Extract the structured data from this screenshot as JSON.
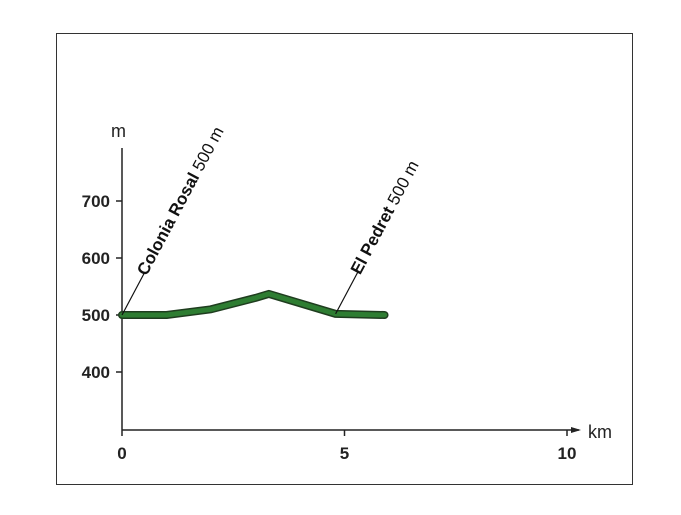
{
  "chart_data": {
    "type": "line",
    "title": "",
    "xlabel": "km",
    "ylabel": "m",
    "xlim": [
      0,
      10
    ],
    "ylim": [
      330,
      790
    ],
    "x_ticks": [
      "0",
      "5",
      "10"
    ],
    "y_ticks": [
      "700",
      "600",
      "500",
      "400"
    ],
    "grid": false,
    "series": [
      {
        "x": [
          0,
          1,
          2,
          3,
          3.3,
          4.8,
          5.9
        ],
        "y": [
          500,
          500,
          510,
          530,
          537,
          502,
          500
        ],
        "color": "#2e7d32"
      }
    ],
    "annotations": [
      {
        "name": "Colonia Rosal",
        "altitude": "500 m",
        "x": 0,
        "y": 500
      },
      {
        "name": "El Pedret",
        "altitude": "500 m",
        "x": 4.8,
        "y": 502
      }
    ]
  }
}
